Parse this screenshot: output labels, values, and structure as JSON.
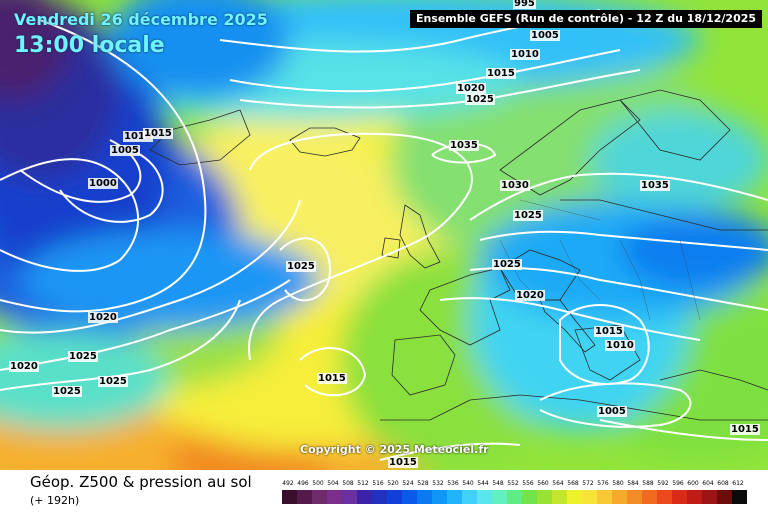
{
  "header": {
    "date_line": "Vendredi 26 décembre 2025",
    "time_line": "13:00 locale",
    "run_info": "Ensemble GEFS  (Run de contrôle)  -  12 Z du 18/12/2025"
  },
  "copyright": "Copyright © 2025 Meteociel.fr",
  "footer": {
    "title": "Géop. Z500 & pression au sol",
    "subtitle": "(+ 192h)"
  },
  "scale": {
    "values": [
      "492",
      "496",
      "500",
      "504",
      "508",
      "512",
      "516",
      "520",
      "524",
      "528",
      "532",
      "536",
      "540",
      "544",
      "548",
      "552",
      "556",
      "560",
      "564",
      "568",
      "572",
      "576",
      "580",
      "584",
      "588",
      "592",
      "596",
      "600",
      "604",
      "608",
      "612"
    ],
    "colors": [
      "#3a0f2e",
      "#551a4a",
      "#6e2a6a",
      "#7b2f8a",
      "#6a2fa0",
      "#3a23a8",
      "#2030c0",
      "#1040d8",
      "#0a5aea",
      "#0a7af2",
      "#1096f6",
      "#20b4fa",
      "#40d0fa",
      "#5ae6ec",
      "#62f0c0",
      "#60ec84",
      "#72e44a",
      "#98e234",
      "#c4e62c",
      "#eef22a",
      "#f8e438",
      "#f8c836",
      "#f6aa2c",
      "#f48c26",
      "#f06a20",
      "#ec4a1c",
      "#dc2a18",
      "#c01c16",
      "#9c1414",
      "#6e0c0c",
      "#0a0a0a"
    ]
  },
  "isobar_labels": [
    {
      "text": "995"
    },
    {
      "text": "1005"
    },
    {
      "text": "1010"
    },
    {
      "text": "1015"
    },
    {
      "text": "1020"
    },
    {
      "text": "1025"
    },
    {
      "text": "1010"
    },
    {
      "text": "1015"
    },
    {
      "text": "1005"
    },
    {
      "text": "1000"
    },
    {
      "text": "1035"
    },
    {
      "text": "1030"
    },
    {
      "text": "1035"
    },
    {
      "text": "1025"
    },
    {
      "text": "1025"
    },
    {
      "text": "1025"
    },
    {
      "text": "1020"
    },
    {
      "text": "1020"
    },
    {
      "text": "1015"
    },
    {
      "text": "1010"
    },
    {
      "text": "1020"
    },
    {
      "text": "1025"
    },
    {
      "text": "1015"
    },
    {
      "text": "1025"
    },
    {
      "text": "1025"
    },
    {
      "text": "1005"
    },
    {
      "text": "1015"
    },
    {
      "text": "1015"
    }
  ]
}
